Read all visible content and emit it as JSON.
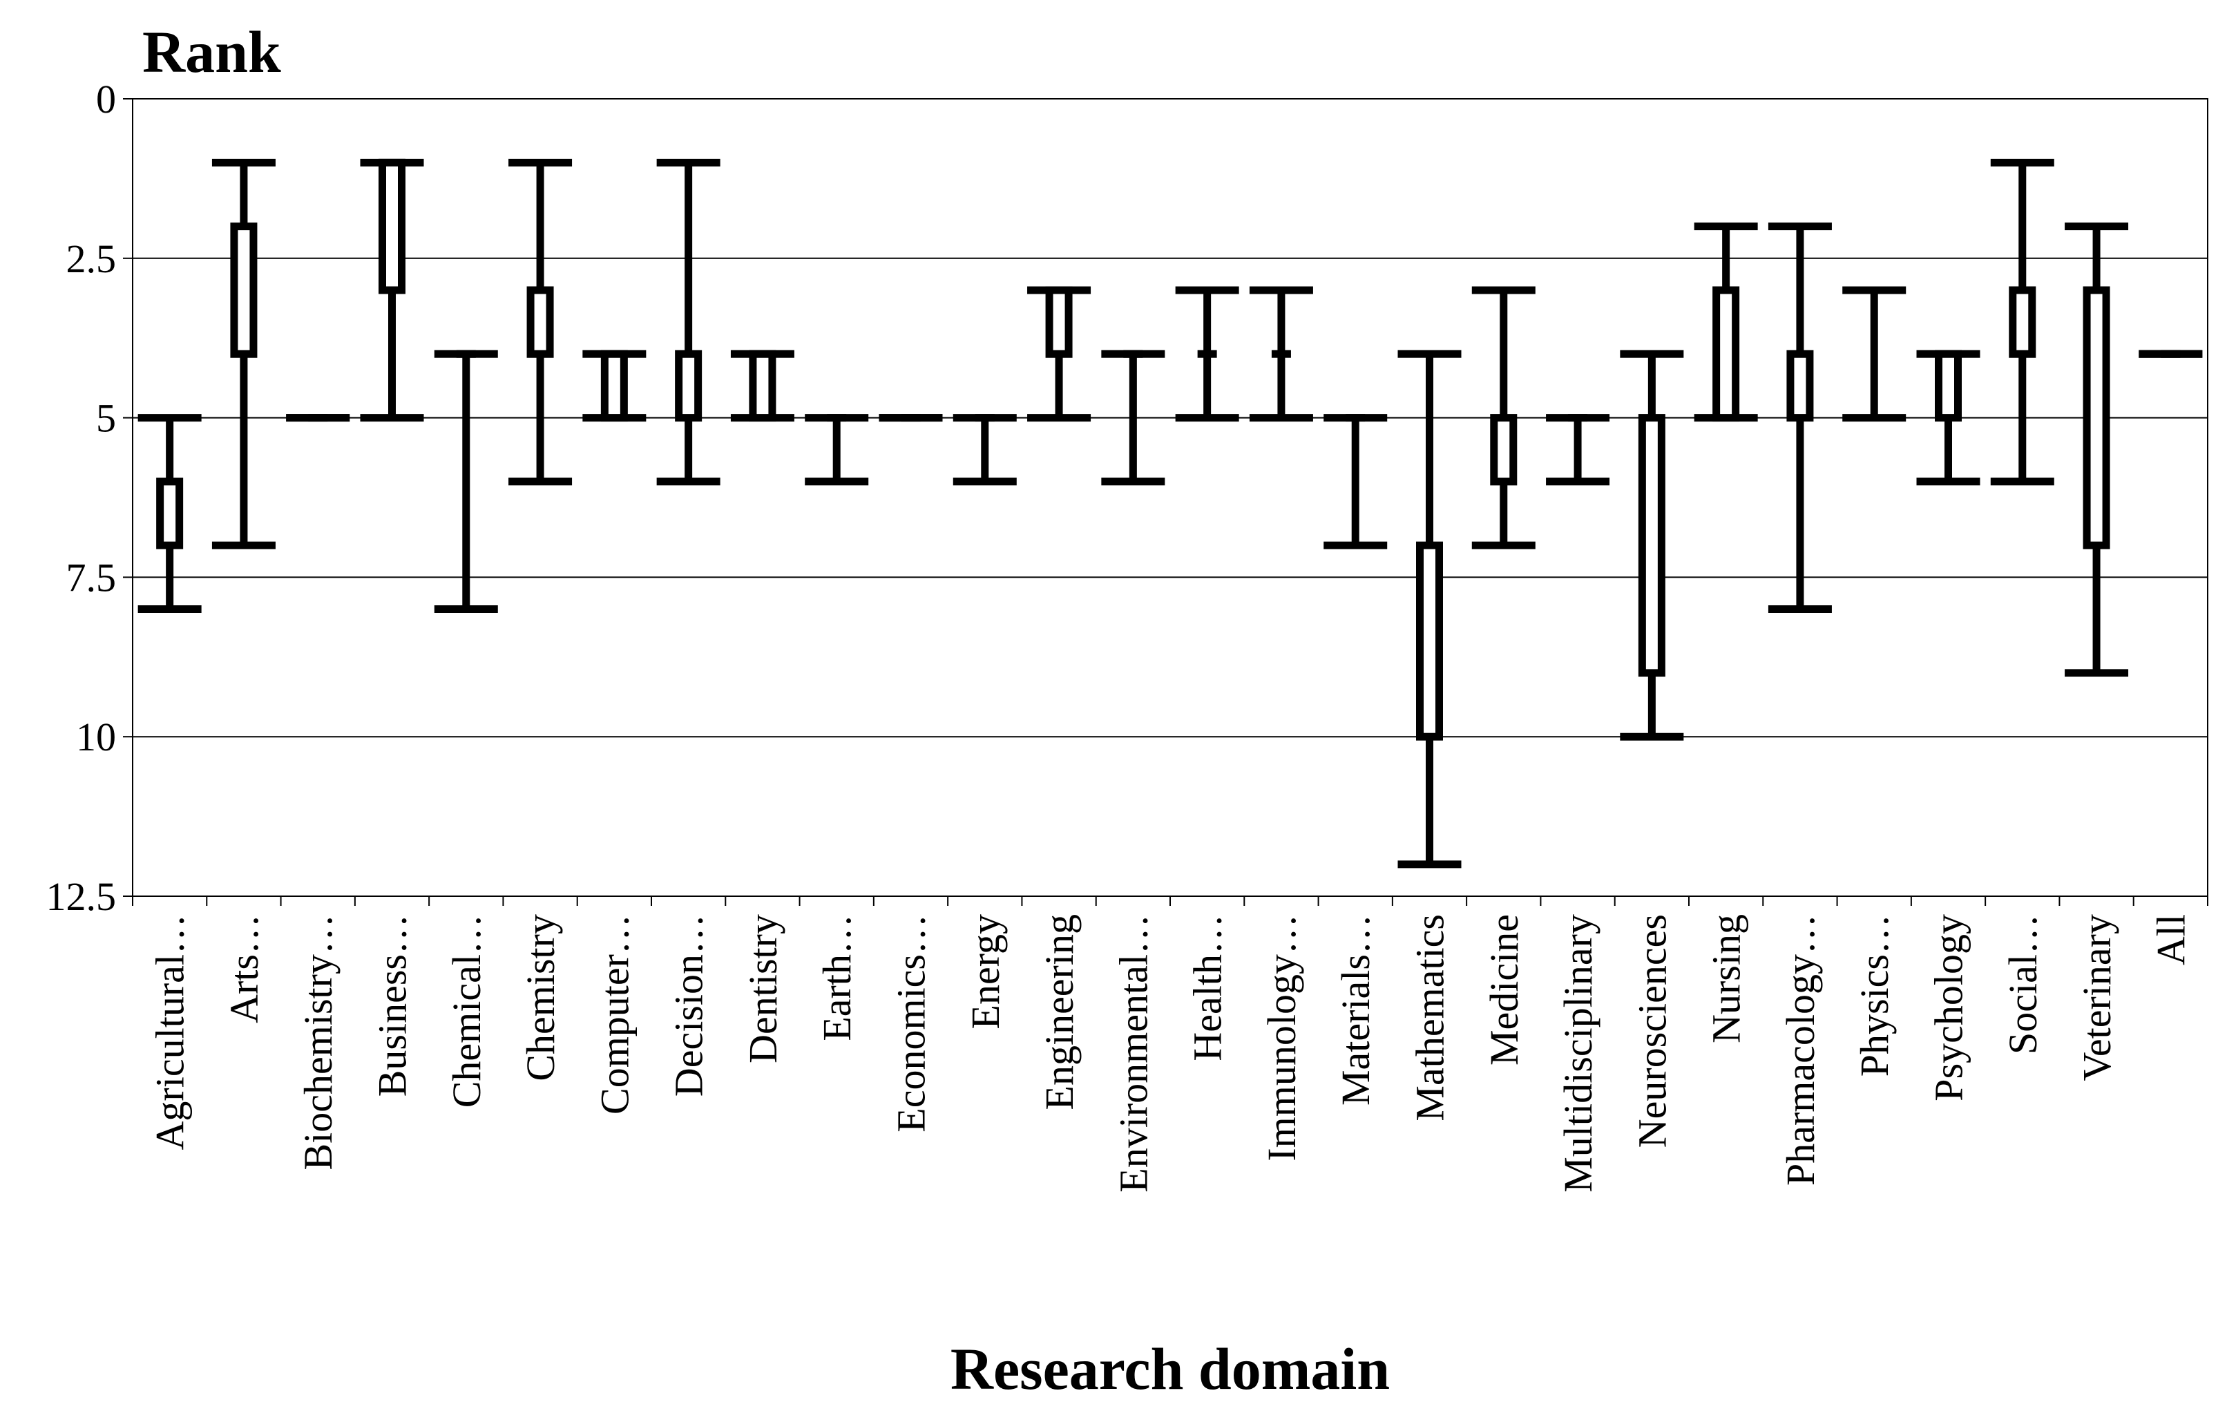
{
  "chart_data": {
    "type": "boxplot",
    "title": "",
    "ylabel": "Rank",
    "xlabel": "Research domain",
    "ylim": [
      0,
      12.5
    ],
    "y_inverted": true,
    "yticks": [
      "0",
      "2.5",
      "5",
      "7.5",
      "10",
      "12.5"
    ],
    "grid": true,
    "categories": [
      "Agricultural…",
      "Arts…",
      "Biochemistry…",
      "Business…",
      "Chemical…",
      "Chemistry",
      "Computer…",
      "Decision…",
      "Dentistry",
      "Earth…",
      "Economics…",
      "Energy",
      "Engineering",
      "Environmental…",
      "Health…",
      "Immunology…",
      "Materials…",
      "Mathematics",
      "Medicine",
      "Multidisciplinary",
      "Neurosciences",
      "Nursing",
      "Pharmacology…",
      "Physics…",
      "Psychology",
      "Social…",
      "Veterinary",
      "All"
    ],
    "boxes": [
      {
        "min": 5,
        "q1": 6,
        "q3": 7,
        "max": 8
      },
      {
        "min": 1,
        "q1": 2,
        "q3": 4,
        "max": 7
      },
      {
        "min": 5,
        "q1": 5,
        "q3": 5,
        "max": 5
      },
      {
        "min": 1,
        "q1": 1,
        "q3": 3,
        "max": 5
      },
      {
        "min": 4,
        "q1": 4,
        "q3": 4,
        "max": 8
      },
      {
        "min": 1,
        "q1": 3,
        "q3": 4,
        "max": 6
      },
      {
        "min": 4,
        "q1": 4,
        "q3": 5,
        "max": 5
      },
      {
        "min": 1,
        "q1": 4,
        "q3": 5,
        "max": 6
      },
      {
        "min": 4,
        "q1": 4,
        "q3": 5,
        "max": 5
      },
      {
        "min": 5,
        "q1": 5,
        "q3": 5,
        "max": 6
      },
      {
        "min": 5,
        "q1": 5,
        "q3": 5,
        "max": 5
      },
      {
        "min": 5,
        "q1": 5,
        "q3": 5,
        "max": 6
      },
      {
        "min": 3,
        "q1": 3,
        "q3": 4,
        "max": 5
      },
      {
        "min": 4,
        "q1": 4,
        "q3": 4,
        "max": 6
      },
      {
        "min": 3,
        "q1": 4,
        "q3": 4,
        "max": 5
      },
      {
        "min": 3,
        "q1": 4,
        "q3": 4,
        "max": 5
      },
      {
        "min": 5,
        "q1": 5,
        "q3": 5,
        "max": 7
      },
      {
        "min": 4,
        "q1": 7,
        "q3": 10,
        "max": 12
      },
      {
        "min": 3,
        "q1": 5,
        "q3": 6,
        "max": 7
      },
      {
        "min": 5,
        "q1": 5,
        "q3": 5,
        "max": 6
      },
      {
        "min": 4,
        "q1": 5,
        "q3": 9,
        "max": 10
      },
      {
        "min": 2,
        "q1": 3,
        "q3": 5,
        "max": 5
      },
      {
        "min": 2,
        "q1": 4,
        "q3": 5,
        "max": 8
      },
      {
        "min": 3,
        "q1": 3,
        "q3": 3,
        "max": 5
      },
      {
        "min": 4,
        "q1": 4,
        "q3": 5,
        "max": 6
      },
      {
        "min": 1,
        "q1": 3,
        "q3": 4,
        "max": 6
      },
      {
        "min": 2,
        "q1": 3,
        "q3": 7,
        "max": 9
      },
      {
        "min": 4,
        "q1": 4,
        "q3": 4,
        "max": 4
      }
    ]
  }
}
